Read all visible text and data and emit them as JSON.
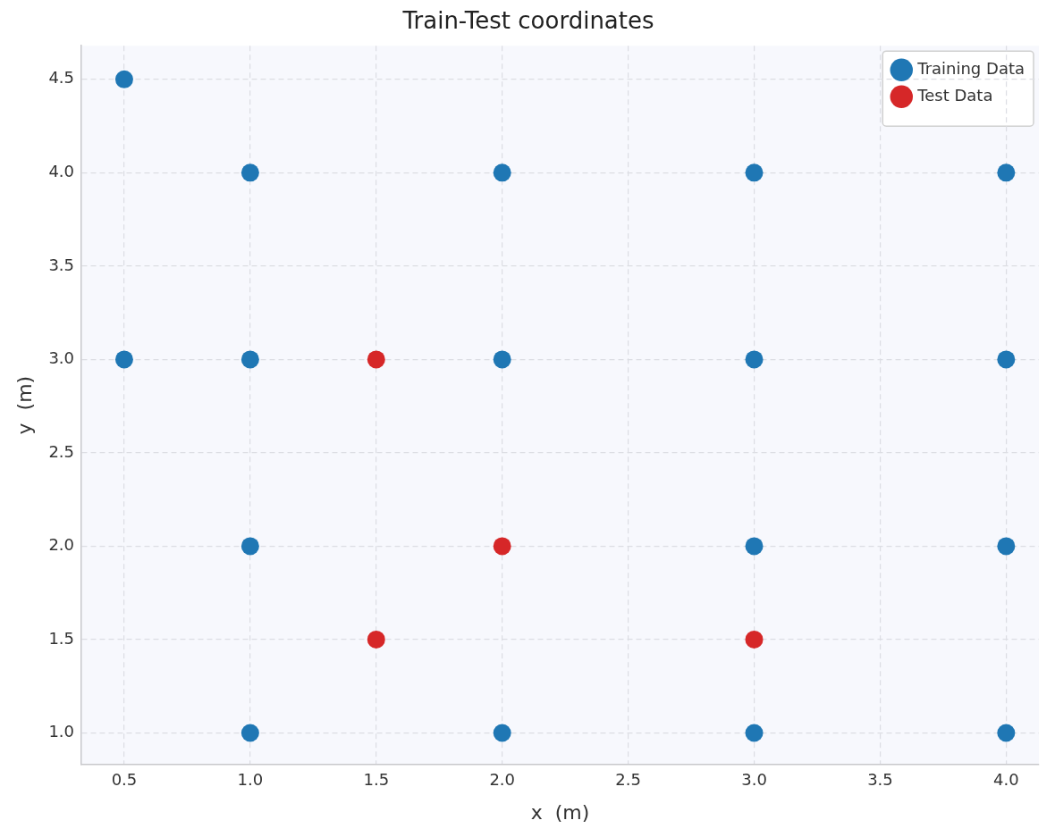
{
  "chart_data": {
    "type": "scatter",
    "title": "Train-Test coordinates",
    "xlabel": "x  (m)",
    "ylabel": "y  (m)",
    "series": [
      {
        "name": "Training Data",
        "color": "#1f77b4",
        "x": [
          0.5,
          1,
          2,
          3,
          4,
          0.5,
          1,
          2,
          3,
          4,
          1,
          3,
          4,
          1,
          2,
          3,
          4
        ],
        "values": [
          4.5,
          4,
          4,
          4,
          4,
          3,
          3,
          3,
          3,
          3,
          2,
          2,
          2,
          1,
          1,
          1,
          1
        ]
      },
      {
        "name": "Test Data",
        "color": "#d62728",
        "x": [
          1.5,
          2,
          1.5,
          3
        ],
        "values": [
          3,
          2,
          1.5,
          1.5
        ]
      }
    ],
    "xlim": [
      0.33,
      4.13
    ],
    "xticks": [
      0.5,
      {
        "value": 1,
        "label": "1.0"
      },
      1.5,
      {
        "value": 2,
        "label": "2.0"
      },
      2.5,
      {
        "value": 3,
        "label": "3.0"
      },
      3.5,
      {
        "value": 4,
        "label": "4.0"
      }
    ],
    "ylim": [
      0.83,
      4.68
    ],
    "yticks": [
      {
        "value": 1,
        "label": "1.0"
      },
      1.5,
      {
        "value": 2,
        "label": "2.0"
      },
      2.5,
      {
        "value": 3,
        "label": "3.0"
      },
      3.5,
      {
        "value": 4,
        "label": "4.0"
      },
      4.5
    ],
    "grid": true,
    "legend": "top right",
    "marker": "circle"
  }
}
